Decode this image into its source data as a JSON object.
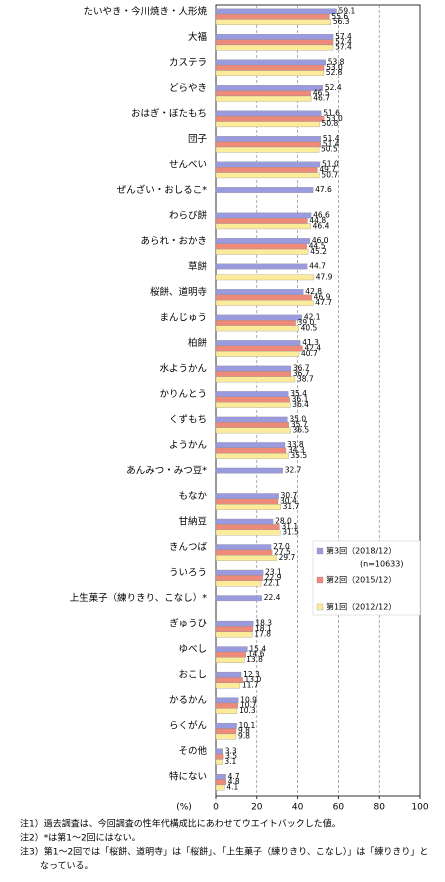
{
  "chart_data": {
    "type": "hbar",
    "categories": [
      "たいやき・今川焼き・人形焼",
      "大福",
      "カステラ",
      "どらやき",
      "おはぎ・ぼたもち",
      "団子",
      "せんべい",
      "ぜんざい・おしるこ*",
      "わらび餅",
      "あられ・おかき",
      "草餅",
      "桜餅、道明寺",
      "まんじゅう",
      "柏餅",
      "水ようかん",
      "かりんとう",
      "くずもち",
      "ようかん",
      "あんみつ・みつ豆*",
      "もなか",
      "甘納豆",
      "きんつば",
      "ういろう",
      "上生菓子（練りきり、こなし）*",
      "ぎゅうひ",
      "ゆべし",
      "おこし",
      "かるかん",
      "らくがん",
      "その他",
      "特にない"
    ],
    "series": [
      {
        "name": "第3回（2018/12）",
        "color": "#9a9ade",
        "values": [
          59.1,
          57.4,
          53.8,
          52.4,
          51.6,
          51.4,
          51.0,
          47.6,
          46.6,
          46.0,
          44.7,
          42.8,
          42.1,
          41.3,
          36.7,
          35.4,
          35.0,
          33.8,
          32.7,
          30.7,
          28.0,
          27.0,
          23.1,
          22.4,
          18.3,
          15.4,
          12.3,
          10.9,
          10.1,
          3.3,
          4.7
        ],
        "value_labels": [
          "59.1",
          "57.4",
          "53.8",
          "52.4",
          "51.6",
          "51.4",
          "51.0",
          "47.6",
          "46.6",
          "46.0",
          "44.7",
          "42.8",
          "42.1",
          "41.3",
          "36.7",
          "35.4",
          "35.0",
          "33.8",
          "32.7",
          "30.7",
          "28.0",
          "27.0",
          "23.1",
          "22.4",
          "18.3",
          "15.4",
          "12.3",
          "10.9",
          "10.1",
          "3.3",
          "4.7"
        ]
      },
      {
        "name": "第2回（2015/12）",
        "color": "#ee8a7a",
        "values": [
          55.6,
          57.4,
          53.0,
          46.5,
          53.0,
          51.4,
          49.7,
          null,
          44.8,
          44.5,
          null,
          46.9,
          39.0,
          42.4,
          36.7,
          36.1,
          35.7,
          34.3,
          null,
          30.4,
          31.1,
          27.5,
          22.9,
          null,
          18.1,
          14.6,
          13.0,
          10.7,
          9.8,
          3.5,
          4.8
        ],
        "value_labels": [
          "55.6",
          "57.4",
          "53.0",
          "46.5",
          "53.0",
          "51.4",
          "49.7",
          null,
          "44.8",
          "44.5",
          null,
          "46.9",
          "39.0",
          "42.4",
          "36.7",
          "36.1",
          "35.7",
          "34.3",
          null,
          "30.4",
          "31.1",
          "27.5",
          "22.9",
          null,
          "18.1",
          "14.6",
          "13.0",
          "10.7",
          "9.8",
          "3.5",
          "4.8"
        ]
      },
      {
        "name": "第1回（2012/12）",
        "color": "#fdeb9c",
        "values": [
          56.3,
          57.4,
          52.8,
          46.7,
          50.8,
          50.5,
          50.7,
          null,
          46.4,
          45.2,
          47.9,
          47.7,
          40.5,
          40.7,
          38.7,
          36.4,
          36.5,
          35.5,
          null,
          31.7,
          31.5,
          29.7,
          22.1,
          null,
          17.8,
          13.8,
          11.7,
          10.3,
          9.8,
          3.1,
          4.1
        ],
        "value_labels": [
          "56.3",
          "57.4",
          "52.8",
          "46.7",
          "50.8",
          "50.5",
          "50.7",
          null,
          "46.4",
          "45.2",
          "47.9",
          "47.7",
          "40.5",
          "40.7",
          "38.7",
          "36.4",
          "36.5",
          "35.5",
          null,
          "31.7",
          "31.5",
          "29.7",
          "22.1",
          null,
          "17.8",
          "13.8",
          "11.7",
          "10.3",
          "9.8",
          "3.1",
          "4.1"
        ]
      }
    ],
    "legend_note": "(n=10633)",
    "xlabel": "(%)",
    "xlim": [
      0,
      100
    ],
    "xticks": [
      0,
      20,
      40,
      60,
      80,
      100
    ],
    "grid": true,
    "notes": [
      "注1）過去調査は、今回調査の性年代構成比にあわせてウエイトバックした値。",
      "注2）*は第1～2回にはない。",
      "注3）第1～2回では「桜餅、道明寺」は「桜餅」、「上生菓子（練りきり、こなし）」は「練りきり」と",
      "なっている。"
    ]
  }
}
